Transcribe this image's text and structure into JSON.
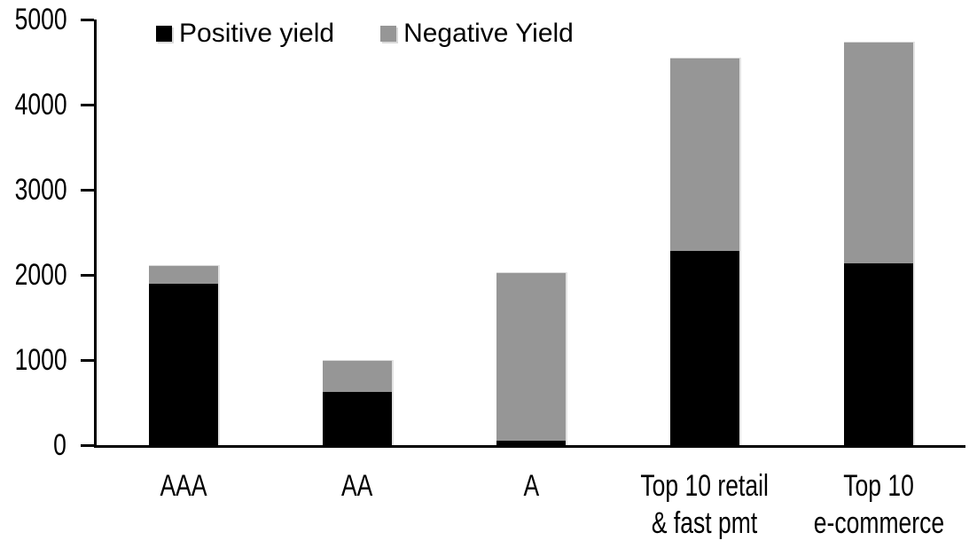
{
  "chart_data": {
    "type": "bar",
    "stacked": true,
    "title": "",
    "xlabel": "",
    "ylabel": "",
    "categories": [
      "AAA",
      "AA",
      "A",
      "Top 10 retail & fast pmt",
      "Top 10 e-commerce"
    ],
    "category_label_lines": [
      [
        "AAA"
      ],
      [
        "AA"
      ],
      [
        "A"
      ],
      [
        "Top 10 retail",
        "& fast pmt"
      ],
      [
        "Top 10",
        "e-commerce"
      ]
    ],
    "series": [
      {
        "name": "Positive yield",
        "color": "#000000",
        "values": [
          1900,
          620,
          50,
          2280,
          2140
        ]
      },
      {
        "name": "Negative Yield",
        "color": "#969696",
        "values": [
          220,
          380,
          1980,
          2270,
          2600
        ]
      }
    ],
    "stack_totals": [
      2120,
      1000,
      2030,
      4550,
      4740
    ],
    "ylim": [
      0,
      5000
    ],
    "yticks": [
      0,
      1000,
      2000,
      3000,
      4000,
      5000
    ],
    "ytick_labels": [
      "0",
      "1000",
      "2000",
      "3000",
      "4000",
      "5000"
    ],
    "legend_position": "top-left-inside",
    "grid": false,
    "axis_color": "#000000",
    "background_color": "#ffffff"
  }
}
